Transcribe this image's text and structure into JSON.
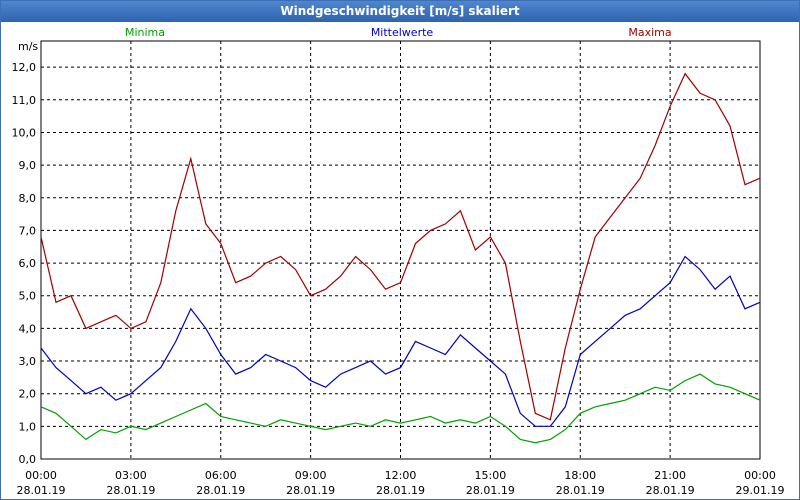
{
  "window": {
    "title": "Windgeschwindigkeit [m/s] skaliert"
  },
  "chart_data": {
    "type": "line",
    "title": "Windgeschwindigkeit [m/s] skaliert",
    "ylabel": "m/s",
    "xlabel": "",
    "ylim": [
      0,
      12.8
    ],
    "xlim": [
      0,
      24
    ],
    "grid": true,
    "legend_position": "top",
    "y_ticks": [
      "0,0",
      "1,0",
      "2,0",
      "3,0",
      "4,0",
      "5,0",
      "6,0",
      "7,0",
      "8,0",
      "9,0",
      "10,0",
      "11,0",
      "12,0"
    ],
    "x_ticks": [
      {
        "time": "00:00",
        "date": "28.01.19"
      },
      {
        "time": "03:00",
        "date": "28.01.19"
      },
      {
        "time": "06:00",
        "date": "28.01.19"
      },
      {
        "time": "09:00",
        "date": "28.01.19"
      },
      {
        "time": "12:00",
        "date": "28.01.19"
      },
      {
        "time": "15:00",
        "date": "28.01.19"
      },
      {
        "time": "18:00",
        "date": "28.01.19"
      },
      {
        "time": "21:00",
        "date": "28.01.19"
      },
      {
        "time": "00:00",
        "date": "29.01.19"
      }
    ],
    "x": [
      0,
      0.5,
      1,
      1.5,
      2,
      2.5,
      3,
      3.5,
      4,
      4.5,
      5,
      5.5,
      6,
      6.5,
      7,
      7.5,
      8,
      8.5,
      9,
      9.5,
      10,
      10.5,
      11,
      11.5,
      12,
      12.5,
      13,
      13.5,
      14,
      14.5,
      15,
      15.5,
      16,
      16.5,
      17,
      17.5,
      18,
      18.5,
      19,
      19.5,
      20,
      20.5,
      21,
      21.5,
      22,
      22.5,
      23,
      23.5,
      24
    ],
    "series": [
      {
        "name": "Minima",
        "color": "#00a000",
        "values": [
          1.6,
          1.4,
          1.0,
          0.6,
          0.9,
          0.8,
          1.0,
          0.9,
          1.1,
          1.3,
          1.5,
          1.7,
          1.3,
          1.2,
          1.1,
          1.0,
          1.2,
          1.1,
          1.0,
          0.9,
          1.0,
          1.1,
          1.0,
          1.2,
          1.1,
          1.2,
          1.3,
          1.1,
          1.2,
          1.1,
          1.3,
          1.0,
          0.6,
          0.5,
          0.6,
          0.9,
          1.4,
          1.6,
          1.7,
          1.8,
          2.0,
          2.2,
          2.1,
          2.4,
          2.6,
          2.3,
          2.2,
          2.0,
          1.8
        ]
      },
      {
        "name": "Mittelwerte",
        "color": "#0000c0",
        "values": [
          3.4,
          2.8,
          2.4,
          2.0,
          2.2,
          1.8,
          2.0,
          2.4,
          2.8,
          3.6,
          4.6,
          4.0,
          3.2,
          2.6,
          2.8,
          3.2,
          3.0,
          2.8,
          2.4,
          2.2,
          2.6,
          2.8,
          3.0,
          2.6,
          2.8,
          3.6,
          3.4,
          3.2,
          3.8,
          3.4,
          3.0,
          2.6,
          1.4,
          1.0,
          1.0,
          1.6,
          3.2,
          3.6,
          4.0,
          4.4,
          4.6,
          5.0,
          5.4,
          6.2,
          5.8,
          5.2,
          5.6,
          4.6,
          4.8
        ]
      },
      {
        "name": "Maxima",
        "color": "#a00000",
        "values": [
          6.8,
          4.8,
          5.0,
          4.0,
          4.2,
          4.4,
          4.0,
          4.2,
          5.4,
          7.6,
          9.2,
          7.2,
          6.6,
          5.4,
          5.6,
          6.0,
          6.2,
          5.8,
          5.0,
          5.2,
          5.6,
          6.2,
          5.8,
          5.2,
          5.4,
          6.6,
          7.0,
          7.2,
          7.6,
          6.4,
          6.8,
          6.0,
          3.6,
          1.4,
          1.2,
          3.4,
          5.2,
          6.8,
          7.4,
          8.0,
          8.6,
          9.6,
          10.8,
          11.8,
          11.2,
          11.0,
          10.2,
          8.4,
          8.6
        ]
      }
    ]
  }
}
